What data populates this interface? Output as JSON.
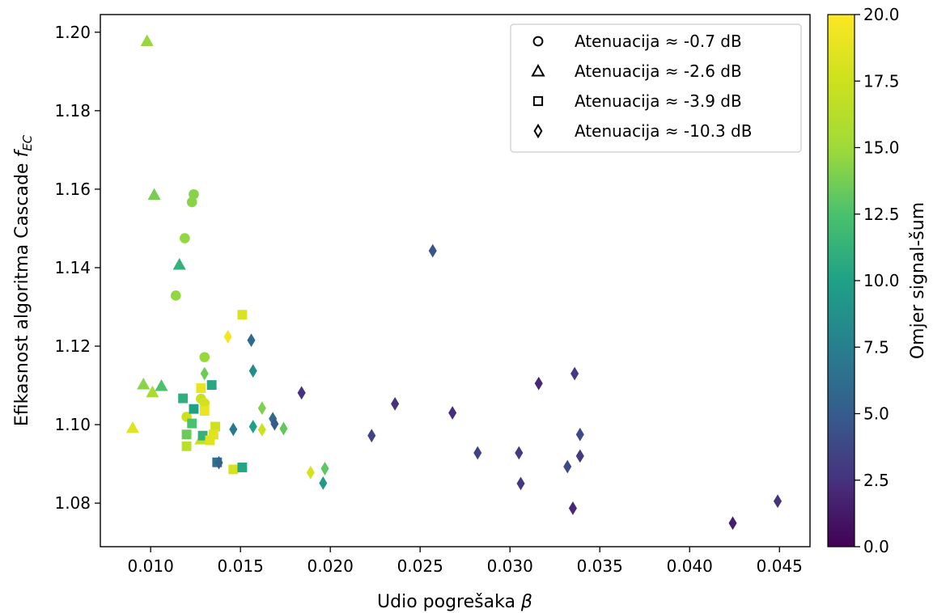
{
  "chart_data": {
    "type": "scatter",
    "xlabel": "Udio pogrešaka β",
    "ylabel": "Efikasnost algoritma Cascade f_EC",
    "ylabel_main": "Efikasnost algoritma Cascade ",
    "ylabel_var": "f",
    "ylabel_sub": "EC",
    "xlabel_main": "Udio pogrešaka ",
    "xlabel_var": "β",
    "xlim": [
      0.0072,
      0.0467
    ],
    "ylim": [
      1.0689,
      1.2045
    ],
    "xticks": [
      0.01,
      0.015,
      0.02,
      0.025,
      0.03,
      0.035,
      0.04,
      0.045
    ],
    "xtick_labels": [
      "0.010",
      "0.015",
      "0.020",
      "0.025",
      "0.030",
      "0.035",
      "0.040",
      "0.045"
    ],
    "yticks": [
      1.08,
      1.1,
      1.12,
      1.14,
      1.16,
      1.18,
      1.2
    ],
    "ytick_labels": [
      "1.08",
      "1.10",
      "1.12",
      "1.14",
      "1.16",
      "1.18",
      "1.20"
    ],
    "colorbar": {
      "label": "Omjer signal-šum",
      "range": [
        0.0,
        20.0
      ],
      "colormap": "viridis",
      "ticks": [
        0.0,
        2.5,
        5.0,
        7.5,
        10.0,
        12.5,
        15.0,
        17.5,
        20.0
      ],
      "tick_labels": [
        "0.0",
        "2.5",
        "5.0",
        "7.5",
        "10.0",
        "12.5",
        "15.0",
        "17.5",
        "20.0"
      ]
    },
    "legend": {
      "placement": "upper right",
      "entries": [
        {
          "marker": "circle",
          "label": "Atenuacija ≈ -0.7 dB"
        },
        {
          "marker": "triangle",
          "label": "Atenuacija ≈ -2.6 dB"
        },
        {
          "marker": "square",
          "label": "Atenuacija ≈ -3.9 dB"
        },
        {
          "marker": "diamond",
          "label": "Atenuacija ≈ -10.3 dB"
        }
      ]
    },
    "grid": false,
    "series": [
      {
        "marker": "circle",
        "points": [
          {
            "x": 0.0124,
            "y": 1.1587,
            "c": 14.3
          },
          {
            "x": 0.0123,
            "y": 1.1567,
            "c": 14.3
          },
          {
            "x": 0.0119,
            "y": 1.1475,
            "c": 14.6
          },
          {
            "x": 0.0114,
            "y": 1.1329,
            "c": 14.6
          },
          {
            "x": 0.013,
            "y": 1.1172,
            "c": 14.8
          },
          {
            "x": 0.0128,
            "y": 1.1066,
            "c": 17.2
          },
          {
            "x": 0.013,
            "y": 1.1055,
            "c": 17.8
          },
          {
            "x": 0.012,
            "y": 1.102,
            "c": 17.5
          }
        ]
      },
      {
        "marker": "triangle",
        "points": [
          {
            "x": 0.0098,
            "y": 1.1978,
            "c": 14.8
          },
          {
            "x": 0.0102,
            "y": 1.1586,
            "c": 13.8
          },
          {
            "x": 0.0116,
            "y": 1.1408,
            "c": 11.2
          },
          {
            "x": 0.0096,
            "y": 1.1103,
            "c": 14.3
          },
          {
            "x": 0.0106,
            "y": 1.1099,
            "c": 12.5
          },
          {
            "x": 0.0101,
            "y": 1.1083,
            "c": 15.5
          },
          {
            "x": 0.009,
            "y": 1.0992,
            "c": 18.5
          },
          {
            "x": 0.0128,
            "y": 1.0963,
            "c": 17.0
          }
        ]
      },
      {
        "marker": "square",
        "points": [
          {
            "x": 0.0151,
            "y": 1.128,
            "c": 18.2
          },
          {
            "x": 0.0134,
            "y": 1.1101,
            "c": 10.5
          },
          {
            "x": 0.0128,
            "y": 1.1093,
            "c": 19.0
          },
          {
            "x": 0.0118,
            "y": 1.1067,
            "c": 11.0
          },
          {
            "x": 0.0124,
            "y": 1.104,
            "c": 10.0
          },
          {
            "x": 0.013,
            "y": 1.1035,
            "c": 19.0
          },
          {
            "x": 0.0123,
            "y": 1.1003,
            "c": 12.5
          },
          {
            "x": 0.0136,
            "y": 1.0995,
            "c": 17.5
          },
          {
            "x": 0.012,
            "y": 1.0975,
            "c": 13.5
          },
          {
            "x": 0.0135,
            "y": 1.0975,
            "c": 18.5
          },
          {
            "x": 0.0129,
            "y": 1.0972,
            "c": 11.2
          },
          {
            "x": 0.0133,
            "y": 1.096,
            "c": 18.5
          },
          {
            "x": 0.012,
            "y": 1.0945,
            "c": 16.5
          },
          {
            "x": 0.0137,
            "y": 1.0904,
            "c": 6.5
          },
          {
            "x": 0.0146,
            "y": 1.0886,
            "c": 18.0
          },
          {
            "x": 0.0151,
            "y": 1.0891,
            "c": 10.3
          }
        ]
      },
      {
        "marker": "diamond",
        "points": [
          {
            "x": 0.0257,
            "y": 1.1443,
            "c": 4.5
          },
          {
            "x": 0.0143,
            "y": 1.1224,
            "c": 19.5
          },
          {
            "x": 0.0156,
            "y": 1.1215,
            "c": 6.0
          },
          {
            "x": 0.0157,
            "y": 1.1137,
            "c": 8.5
          },
          {
            "x": 0.013,
            "y": 1.113,
            "c": 13.5
          },
          {
            "x": 0.0336,
            "y": 1.113,
            "c": 3.0
          },
          {
            "x": 0.0316,
            "y": 1.1105,
            "c": 2.0
          },
          {
            "x": 0.0184,
            "y": 1.1081,
            "c": 2.5
          },
          {
            "x": 0.0236,
            "y": 1.1053,
            "c": 2.5
          },
          {
            "x": 0.0162,
            "y": 1.1042,
            "c": 14.0
          },
          {
            "x": 0.0268,
            "y": 1.103,
            "c": 2.3
          },
          {
            "x": 0.0168,
            "y": 1.1015,
            "c": 6.0
          },
          {
            "x": 0.0169,
            "y": 1.1002,
            "c": 5.0
          },
          {
            "x": 0.0157,
            "y": 1.0995,
            "c": 10.0
          },
          {
            "x": 0.0174,
            "y": 1.099,
            "c": 13.2
          },
          {
            "x": 0.0146,
            "y": 1.0988,
            "c": 7.0
          },
          {
            "x": 0.0162,
            "y": 1.0987,
            "c": 17.5
          },
          {
            "x": 0.0223,
            "y": 1.0972,
            "c": 3.5
          },
          {
            "x": 0.0339,
            "y": 1.0975,
            "c": 4.0
          },
          {
            "x": 0.0282,
            "y": 1.0928,
            "c": 3.5
          },
          {
            "x": 0.0305,
            "y": 1.0928,
            "c": 3.0
          },
          {
            "x": 0.0339,
            "y": 1.092,
            "c": 3.0
          },
          {
            "x": 0.0332,
            "y": 1.0893,
            "c": 4.0
          },
          {
            "x": 0.0197,
            "y": 1.0888,
            "c": 13.0
          },
          {
            "x": 0.0189,
            "y": 1.0878,
            "c": 18.0
          },
          {
            "x": 0.0196,
            "y": 1.0851,
            "c": 9.5
          },
          {
            "x": 0.0306,
            "y": 1.085,
            "c": 3.0
          },
          {
            "x": 0.0335,
            "y": 1.0787,
            "c": 2.0
          },
          {
            "x": 0.0449,
            "y": 1.0805,
            "c": 2.5
          },
          {
            "x": 0.0424,
            "y": 1.0749,
            "c": 1.5
          },
          {
            "x": 0.0138,
            "y": 1.0903,
            "c": 5.5
          }
        ]
      }
    ]
  }
}
